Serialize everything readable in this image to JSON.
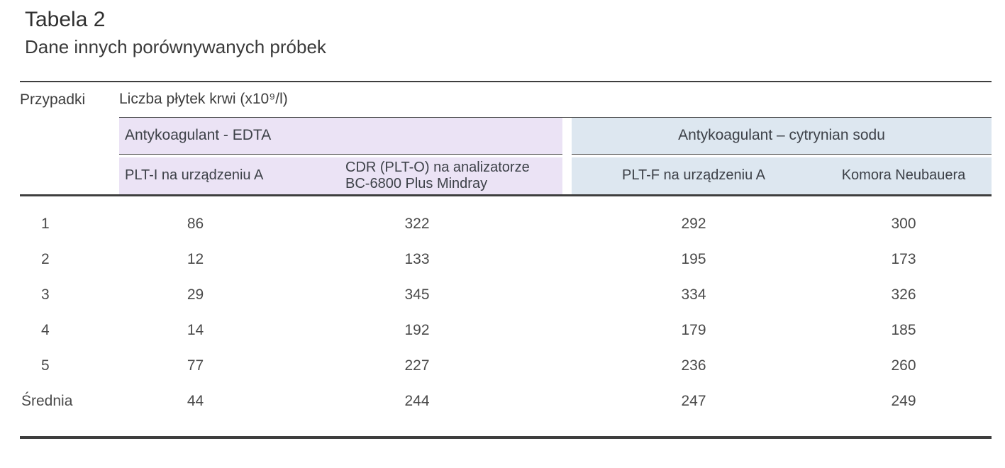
{
  "title": "Tabela 2",
  "subtitle": "Dane innych porównywanych próbek",
  "colors": {
    "edta_band": "#ebe3f5",
    "citrate_band": "#dde7f0",
    "rule": "#3e3e3e"
  },
  "table": {
    "case_header": "Przypadki",
    "measure_header": "Liczba płytek krwi (x10⁹/l)",
    "groups": [
      {
        "label": "Antykoagulant - EDTA"
      },
      {
        "label": "Antykoagulant – cytrynian sodu"
      }
    ],
    "columns": [
      "PLT-I na urządzeniu A",
      "CDR (PLT-O) na analizatorze BC-6800 Plus Mindray",
      "PLT-F na urządzeniu A",
      "Komora Neubauera"
    ],
    "rows": [
      {
        "case": "1",
        "values": [
          "86",
          "322",
          "292",
          "300"
        ],
        "summary": false
      },
      {
        "case": "2",
        "values": [
          "12",
          "133",
          "195",
          "173"
        ],
        "summary": false
      },
      {
        "case": "3",
        "values": [
          "29",
          "345",
          "334",
          "326"
        ],
        "summary": false
      },
      {
        "case": "4",
        "values": [
          "14",
          "192",
          "179",
          "185"
        ],
        "summary": false
      },
      {
        "case": "5",
        "values": [
          "77",
          "227",
          "236",
          "260"
        ],
        "summary": false
      },
      {
        "case": "Średnia",
        "values": [
          "44",
          "244",
          "247",
          "249"
        ],
        "summary": true
      }
    ]
  }
}
